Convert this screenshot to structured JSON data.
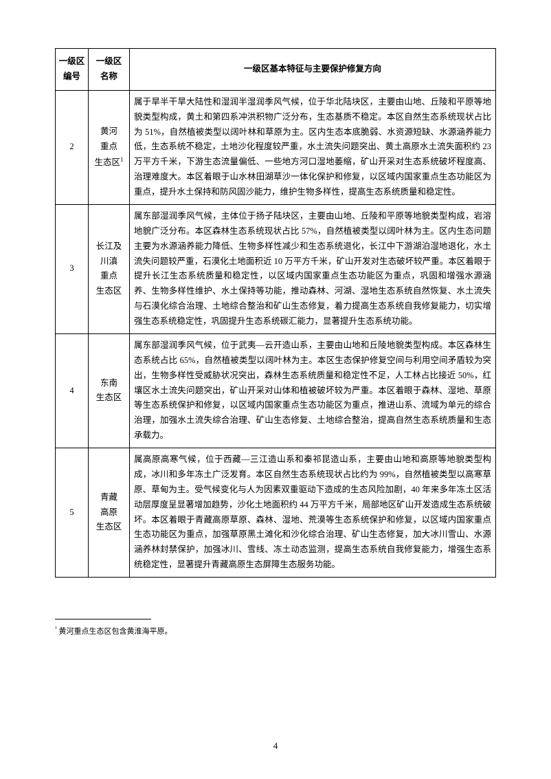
{
  "table": {
    "header": {
      "col1": "一级区\n编号",
      "col2": "一级区\n名称",
      "col3": "一级区基本特征与主要保护修复方向"
    },
    "rows": [
      {
        "num": "2",
        "name": "黄河\n重点\n生态区¹",
        "desc": "属于旱半干旱大陆性和湿润半湿润季风气候，位于华北陆块区，主要由山地、丘陵和平原等地貌类型构成，黄土和第四系冲洪积物广泛分布，生态基质不稳定。本区自然生态系统现状占比为 51%，自然植被类型以阔叶林和草原为主。区内生态本底脆弱、水资源短缺、水源涵养能力低，生态系统不稳定，土地沙化程度较严重，水土流失问题突出、黄土高原水土流失面积约 23 万平方千米，下游生态流量偏低、一些地方河口湿地萎缩，矿山开采对生态系统破坏程度高、治理难度大。本区着眼于山水林田湖草沙一体化保护和修复，以区域内国家重点生态功能区为重点，提升水土保持和防风固沙能力，维护生物多样性，提高生态系统质量和稳定性。"
      },
      {
        "num": "3",
        "name": "长江及\n川滇\n重点\n生态区",
        "desc": "属东部湿润季风气候，主体位于扬子陆块区，主要由山地、丘陵和平原等地貌类型构成，岩溶地貌广泛分布。本区森林生态系统现状占比 57%，自然植被类型以阔叶林为主。区内生态问题主要为水源涵养能力降低、生物多样性减少和生态系统退化，长江中下游湖泊湿地退化，水土流失问题较严重，石漠化土地面积近 10 万平方千米，矿山开发对生态破坏较严重。本区着眼于提升长江生态系统质量和稳定性，以区域内国家重点生态功能区为重点，巩固和增强水源涵养、生物多样性维护、水土保持等功能，推动森林、河湖、湿地生态系统自然恢复、水土流失与石漠化综合治理、土地综合整治和矿山生态修复，着力提高生态系统自我修复能力，切实增强生态系统稳定性，巩固提升生态系统碳汇能力，显著提升生态系统功能。"
      },
      {
        "num": "4",
        "name": "东南\n生态区",
        "desc": "属东部湿润季风气候，位于武夷—云开造山系，主要由山地和丘陵地貌类型构成。本区森林生态系统占比 65%，自然植被类型以阔叶林为主。本区生态保护修复空间与利用空间矛盾较为突出，生物多样性受威胁状况突出，森林生态系统质量和稳定性不足，人工林占比接近 50%，红壤区水土流失问题突出，矿山开采对山体和植被破坏较为严重。本区着眼于森林、湿地、草原等生态系统保护和修复，以区域内国家重点生态功能区为重点，推进山系、流域为单元的综合治理，加强水土流失综合治理、矿山生态修复、土地综合整治，提高自然生态系统质量和生态承载力。"
      },
      {
        "num": "5",
        "name": "青藏\n高原\n生态区",
        "desc": "属高原高寒气候，位于西藏—三江造山系和秦祁昆造山系，主要由山地和高原等地貌类型构成，冰川和多年冻土广泛发育。本区自然生态系统现状占比约为 99%，自然植被类型以高寒草原、草甸为主。受气候变化与人为因素双重驱动下造成的生态风险加剧，40 年来多年冻土区活动层厚度呈显著增加趋势，沙化土地面积约 44 万平方千米，局部地区矿山开发造成生态系统破坏。本区着眼于青藏高原草原、森林、湿地、荒漠等生态系统保护和修复，以区域内国家重点生态功能区为重点，加强草原黑土滩化和沙化综合治理、矿山生态修复，加大冰川雪山、水源涵养林封禁保护，加强冰川、雪线、冻土动态监测，提高生态系统自我修复能力，增强生态系统稳定性，显著提升青藏高原生态屏障生态服务功能。"
      }
    ]
  },
  "footnote": {
    "marker": "¹",
    "text": "黄河重点生态区包含黄淮海平原。"
  },
  "pageNumber": "4"
}
